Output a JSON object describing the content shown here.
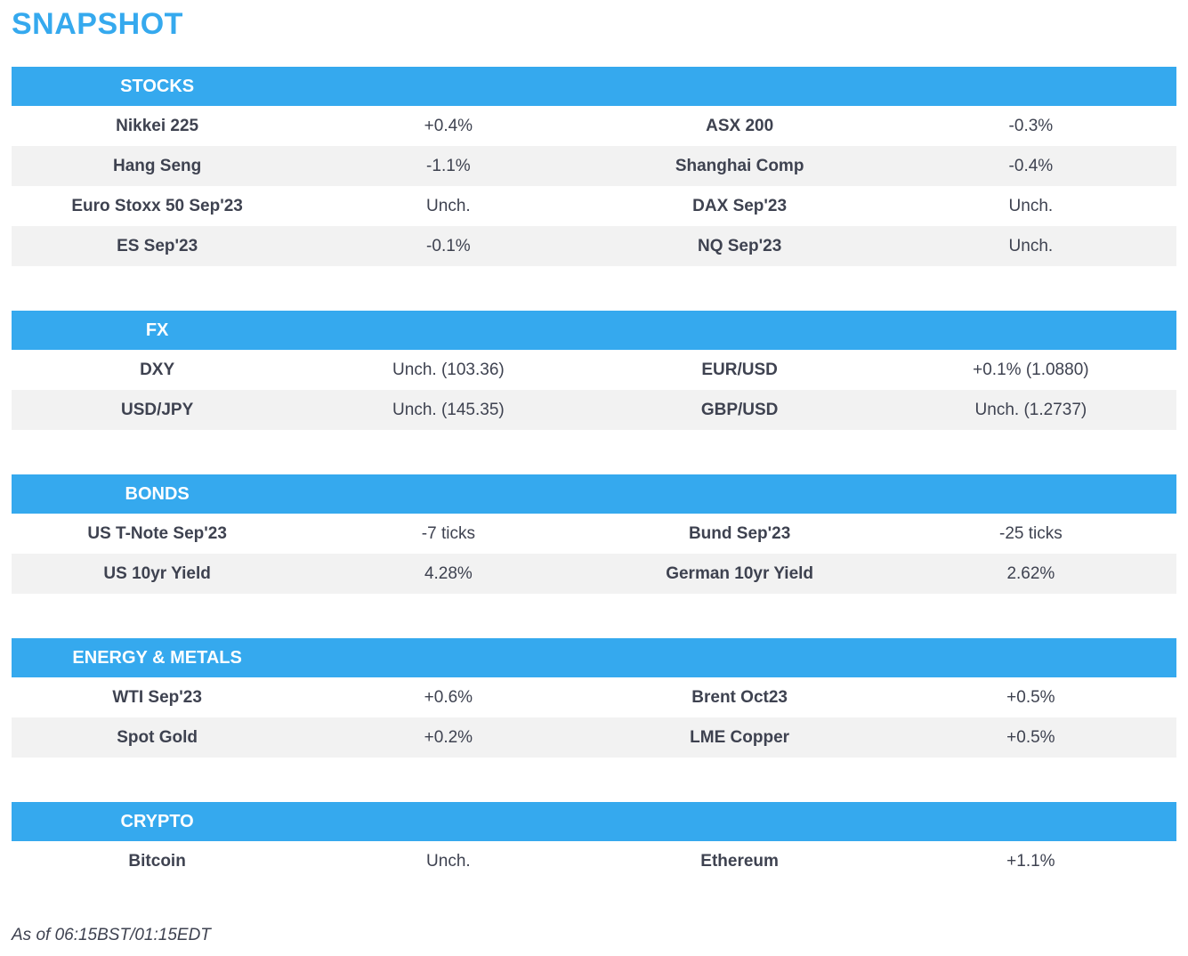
{
  "page": {
    "title": "SNAPSHOT",
    "footer": "As of 06:15BST/01:15EDT"
  },
  "colors": {
    "accent_blue": "#35A9EE",
    "row_stripe": "#F2F2F2",
    "text_dark": "#3E4250",
    "header_text": "#FFFFFF"
  },
  "sections": [
    {
      "header": "STOCKS",
      "rows": [
        {
          "left_label": "Nikkei 225",
          "left_value": "+0.4%",
          "right_label": "ASX 200",
          "right_value": "-0.3%"
        },
        {
          "left_label": "Hang Seng",
          "left_value": "-1.1%",
          "right_label": "Shanghai Comp",
          "right_value": "-0.4%"
        },
        {
          "left_label": "Euro Stoxx 50 Sep'23",
          "left_value": "Unch.",
          "right_label": "DAX Sep'23",
          "right_value": "Unch."
        },
        {
          "left_label": "ES Sep'23",
          "left_value": "-0.1%",
          "right_label": "NQ Sep'23",
          "right_value": "Unch."
        }
      ]
    },
    {
      "header": "FX",
      "rows": [
        {
          "left_label": "DXY",
          "left_value": "Unch. (103.36)",
          "right_label": "EUR/USD",
          "right_value": "+0.1% (1.0880)"
        },
        {
          "left_label": "USD/JPY",
          "left_value": "Unch. (145.35)",
          "right_label": "GBP/USD",
          "right_value": "Unch. (1.2737)"
        }
      ]
    },
    {
      "header": "BONDS",
      "rows": [
        {
          "left_label": "US T-Note Sep'23",
          "left_value": "-7 ticks",
          "right_label": "Bund Sep'23",
          "right_value": "-25 ticks"
        },
        {
          "left_label": "US 10yr Yield",
          "left_value": "4.28%",
          "right_label": "German 10yr Yield",
          "right_value": "2.62%"
        }
      ]
    },
    {
      "header": "ENERGY & METALS",
      "rows": [
        {
          "left_label": "WTI Sep'23",
          "left_value": "+0.6%",
          "right_label": "Brent Oct23",
          "right_value": "+0.5%"
        },
        {
          "left_label": "Spot Gold",
          "left_value": "+0.2%",
          "right_label": "LME Copper",
          "right_value": "+0.5%"
        }
      ]
    },
    {
      "header": "CRYPTO",
      "rows": [
        {
          "left_label": "Bitcoin",
          "left_value": "Unch.",
          "right_label": "Ethereum",
          "right_value": "+1.1%"
        }
      ]
    }
  ]
}
